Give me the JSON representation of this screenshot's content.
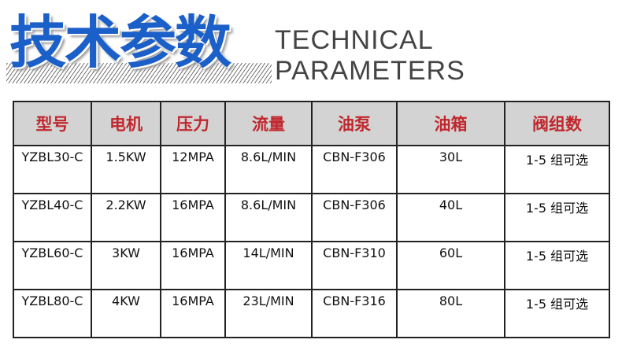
{
  "header": {
    "title_cn": "技术参数",
    "title_en": "TECHNICAL PARAMETERS",
    "accent": "#1b5fc9"
  },
  "table": {
    "headers": [
      "型号",
      "电机",
      "压力",
      "流量",
      "油泵",
      "油箱",
      "阀组数"
    ],
    "rows": [
      [
        "YZBL30-C",
        "1.5KW",
        "12MPA",
        "8.6L/MIN",
        "CBN-F306",
        "30L",
        "1-5 组可选"
      ],
      [
        "YZBL40-C",
        "2.2KW",
        "16MPA",
        "8.6L/MIN",
        "CBN-F306",
        "40L",
        "1-5 组可选"
      ],
      [
        "YZBL60-C",
        "3KW",
        "16MPA",
        "14L/MIN",
        "CBN-F310",
        "60L",
        "1-5 组可选"
      ],
      [
        "YZBL80-C",
        "4KW",
        "16MPA",
        "23L/MIN",
        "CBN-F316",
        "80L",
        "1-5 组可选"
      ]
    ],
    "header_color": "#c0272d",
    "header_bg": "#d3d3d3"
  }
}
